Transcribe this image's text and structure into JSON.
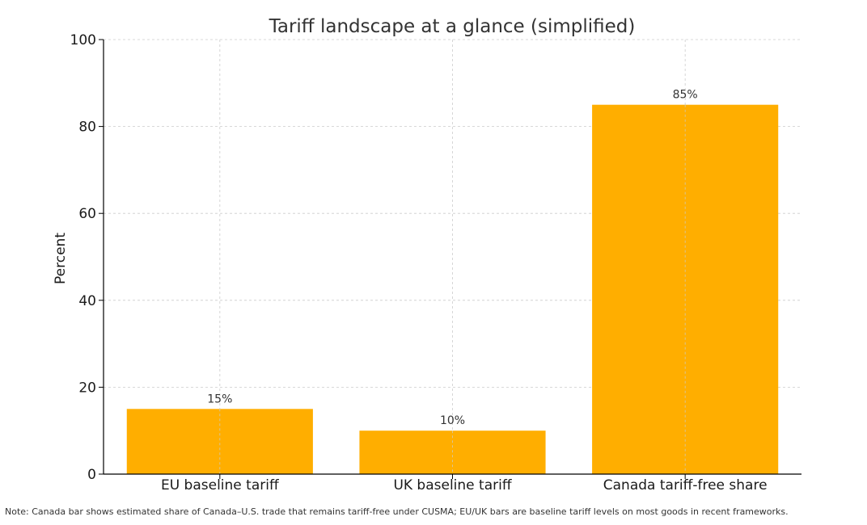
{
  "chart_data": {
    "type": "bar",
    "title": "Tariff landscape at a glance (simplified)",
    "xlabel": "",
    "ylabel": "Percent",
    "categories": [
      "EU baseline tariff",
      "UK baseline tariff",
      "Canada tariff-free share"
    ],
    "values": [
      15,
      10,
      85
    ],
    "value_labels": [
      "15%",
      "10%",
      "85%"
    ],
    "ylim": [
      0,
      100
    ],
    "yticks": [
      0,
      20,
      40,
      60,
      80,
      100
    ],
    "grid": true,
    "bar_color": "#FFAE00",
    "grid_color": "#cccccc",
    "note": "Note: Canada bar shows estimated share of Canada–U.S. trade that remains tariff-free under CUSMA; EU/UK bars are baseline tariff levels on most goods in recent frameworks."
  }
}
